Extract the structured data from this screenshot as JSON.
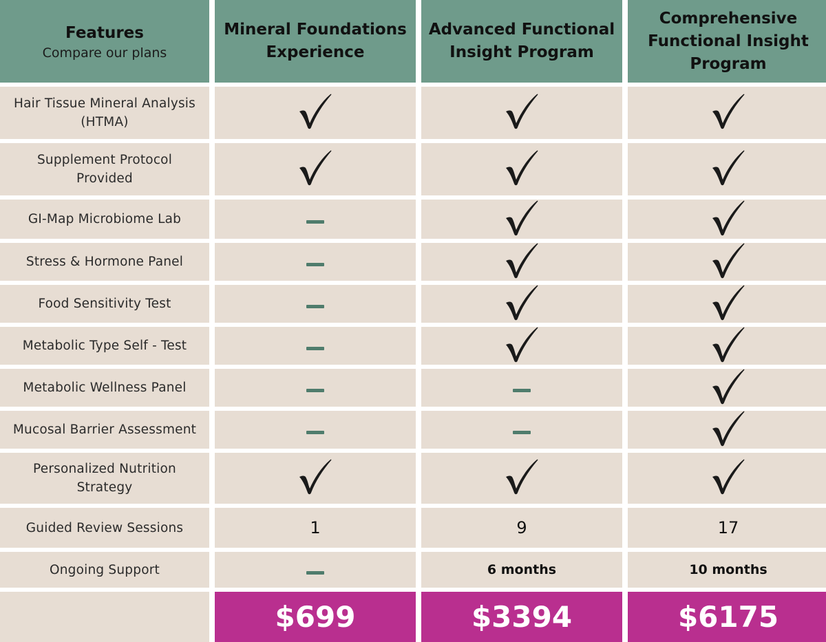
{
  "header": {
    "features_title": "Features",
    "features_subtitle": "Compare our plans",
    "plans": [
      "Mineral Foundations Experience",
      "Advanced Functional Insight Program",
      "Comprehensive Functional Insight Program"
    ]
  },
  "rows": [
    {
      "feature": "Hair Tissue Mineral Analysis (HTMA)",
      "values": [
        "check",
        "check",
        "check"
      ]
    },
    {
      "feature": "Supplement Protocol Provided",
      "values": [
        "check",
        "check",
        "check"
      ]
    },
    {
      "feature": "GI-Map Microbiome Lab",
      "values": [
        "dash",
        "check",
        "check"
      ]
    },
    {
      "feature": "Stress & Hormone Panel",
      "values": [
        "dash",
        "check",
        "check"
      ]
    },
    {
      "feature": "Food Sensitivity Test",
      "values": [
        "dash",
        "check",
        "check"
      ]
    },
    {
      "feature": "Metabolic Type Self - Test",
      "values": [
        "dash",
        "check",
        "check"
      ]
    },
    {
      "feature": "Metabolic Wellness Panel",
      "values": [
        "dash",
        "dash",
        "check"
      ]
    },
    {
      "feature": "Mucosal Barrier Assessment",
      "values": [
        "dash",
        "dash",
        "check"
      ]
    },
    {
      "feature": "Personalized Nutrition Strategy",
      "values": [
        "check",
        "check",
        "check"
      ]
    },
    {
      "feature": "Guided Review Sessions",
      "values": [
        "1",
        "9",
        "17"
      ]
    },
    {
      "feature": "Ongoing Support",
      "values": [
        "dash",
        "6 months",
        "10 months"
      ]
    }
  ],
  "prices": [
    "$699",
    "$3394",
    "$6175"
  ],
  "colors": {
    "header_bg": "#6f9b8b",
    "cell_bg": "#e7ddd3",
    "price_bg": "#b92f8f",
    "dash": "#4f7c6c"
  },
  "icons": {
    "included": "checkmark-icon",
    "not_included": "dash-icon"
  }
}
